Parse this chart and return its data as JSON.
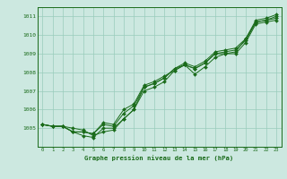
{
  "x": [
    0,
    1,
    2,
    3,
    4,
    5,
    6,
    7,
    8,
    9,
    10,
    11,
    12,
    13,
    14,
    15,
    16,
    17,
    18,
    19,
    20,
    21,
    22,
    23
  ],
  "series": [
    [
      1005.2,
      1005.1,
      1005.1,
      1004.8,
      1004.6,
      1004.5,
      1005.0,
      1005.0,
      1005.5,
      1006.0,
      1007.0,
      1007.2,
      1007.5,
      1008.1,
      1008.4,
      1007.9,
      1008.3,
      1008.8,
      1009.0,
      1009.0,
      1009.6,
      1010.6,
      1010.7,
      1010.8
    ],
    [
      1005.2,
      1005.1,
      1005.1,
      1004.8,
      1004.8,
      1004.7,
      1005.2,
      1005.1,
      1005.8,
      1006.2,
      1007.2,
      1007.4,
      1007.7,
      1008.2,
      1008.4,
      1008.2,
      1008.5,
      1009.0,
      1009.1,
      1009.2,
      1009.7,
      1010.7,
      1010.8,
      1010.9
    ],
    [
      1005.2,
      1005.1,
      1005.1,
      1005.0,
      1004.9,
      1004.6,
      1004.8,
      1004.9,
      1005.5,
      1006.0,
      1007.2,
      1007.4,
      1007.7,
      1008.2,
      1008.5,
      1008.3,
      1008.6,
      1009.1,
      1009.2,
      1009.3,
      1009.8,
      1010.8,
      1010.9,
      1011.1
    ],
    [
      1005.2,
      1005.1,
      1005.1,
      1004.8,
      1004.8,
      1004.7,
      1005.3,
      1005.2,
      1006.0,
      1006.3,
      1007.3,
      1007.5,
      1007.8,
      1008.1,
      1008.4,
      1008.2,
      1008.5,
      1009.0,
      1009.0,
      1009.1,
      1009.8,
      1010.7,
      1010.8,
      1011.0
    ]
  ],
  "ylim": [
    1004.0,
    1011.5
  ],
  "yticks": [
    1005,
    1006,
    1007,
    1008,
    1009,
    1010,
    1011
  ],
  "xticks": [
    0,
    1,
    2,
    3,
    4,
    5,
    6,
    7,
    8,
    9,
    10,
    11,
    12,
    13,
    14,
    15,
    16,
    17,
    18,
    19,
    20,
    21,
    22,
    23
  ],
  "line_color": "#1a6b1a",
  "marker_color": "#1a6b1a",
  "bg_color": "#cce8e0",
  "grid_color": "#99ccbb",
  "xlabel": "Graphe pression niveau de la mer (hPa)",
  "xlabel_color": "#1a6b1a"
}
